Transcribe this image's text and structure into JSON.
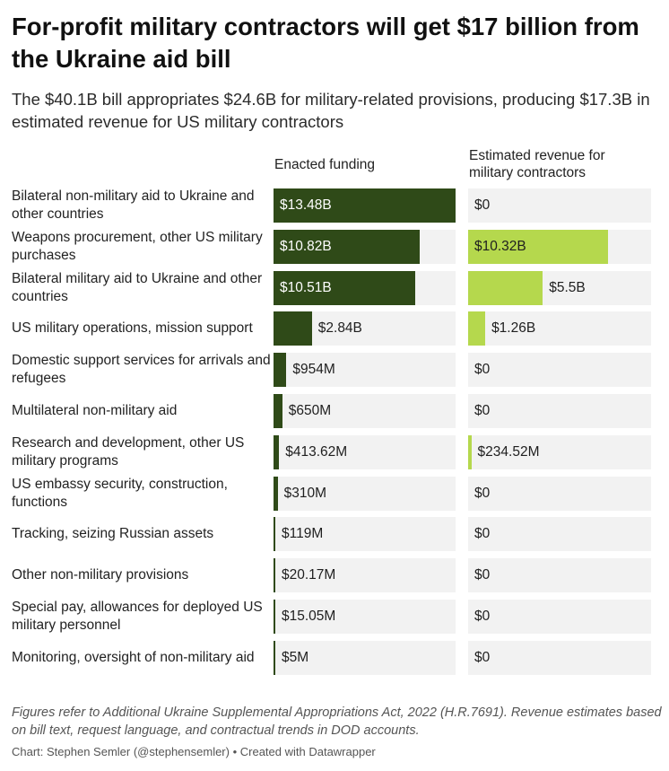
{
  "header": {
    "title": "For-profit military contractors will get $17 billion from the Ukraine aid bill",
    "subtitle": "The $40.1B bill appropriates $24.6B for military-related provisions, producing $17.3B in estimated revenue for US military contractors"
  },
  "footer": {
    "notes": "Figures refer to Additional Ukraine Supplemental Appropriations Act, 2022 (H.R.7691). Revenue estimates based on bill text, request language, and contractual trends in DOD accounts.",
    "credit": "Chart: Stephen Semler (@stephensemler) • Created with Datawrapper"
  },
  "colors": {
    "enacted": "#2f4a18",
    "revenue": "#b5d84d",
    "track": "#f2f2f2"
  },
  "chart_data": {
    "type": "bar",
    "title": "For-profit military contractors will get $17 billion from the Ukraine aid bill",
    "subtitle": "The $40.1B bill appropriates $24.6B for military-related provisions, producing $17.3B in estimated revenue for US military contractors",
    "categories": [
      "Bilateral non-military aid to Ukraine and other countries",
      "Weapons procurement, other US military purchases",
      "Bilateral military aid to Ukraine and other countries",
      "US military operations, mission support",
      "Domestic support services for arrivals and refugees",
      "Multilateral non-military aid",
      "Research and development, other US military programs",
      "US embassy security, construction, functions",
      "Tracking, seizing Russian assets",
      "Other non-military provisions",
      "Special pay, allowances for deployed US military personnel",
      "Monitoring, oversight of non-military aid"
    ],
    "series": [
      {
        "name": "Enacted funding",
        "values": [
          13.48,
          10.82,
          10.51,
          2.84,
          0.954,
          0.65,
          0.41362,
          0.31,
          0.119,
          0.02017,
          0.01505,
          0.005
        ],
        "labels": [
          "$13.48B",
          "$10.82B",
          "$10.51B",
          "$2.84B",
          "$954M",
          "$650M",
          "$413.62M",
          "$310M",
          "$119M",
          "$20.17M",
          "$15.05M",
          "$5M"
        ]
      },
      {
        "name": "Estimated revenue for military contractors",
        "values": [
          0,
          10.32,
          5.5,
          1.26,
          0,
          0,
          0.23452,
          0,
          0,
          0,
          0,
          0
        ],
        "labels": [
          "$0",
          "$10.32B",
          "$5.5B",
          "$1.26B",
          "$0",
          "$0",
          "$234.52M",
          "$0",
          "$0",
          "$0",
          "$0",
          "$0"
        ]
      }
    ],
    "xlim": [
      0,
      13.48
    ]
  }
}
